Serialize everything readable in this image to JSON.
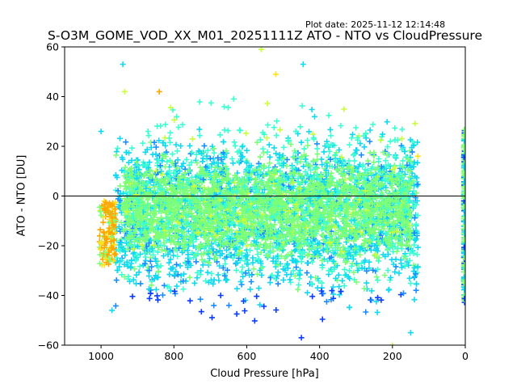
{
  "plot_date": "Plot date: 2025-11-12 12:14:48",
  "chart_data": {
    "type": "scatter",
    "title": "S-O3M_GOME_VOD_XX_M01_20251111Z ATO - NTO vs CloudPressure",
    "xlabel": "Cloud Pressure [hPa]",
    "ylabel": "ATO - NTO [DU]",
    "xlim": [
      1100,
      0
    ],
    "ylim": [
      -60,
      60
    ],
    "xticks": [
      1000,
      800,
      600,
      400,
      200,
      0
    ],
    "yticks": [
      -60,
      -40,
      -20,
      0,
      20,
      40,
      60
    ],
    "xtick_labels": [
      "1000",
      "800",
      "600",
      "400",
      "200",
      "0"
    ],
    "ytick_labels": [
      "−60",
      "−40",
      "−20",
      "0",
      "20",
      "40",
      "60"
    ],
    "reference_line_y": 0,
    "marker": "+",
    "grid": false,
    "colors": [
      "#0a3cff",
      "#1a8cff",
      "#12d8f0",
      "#3dffd2",
      "#7dff78",
      "#c8ff3c",
      "#ffe21a",
      "#ffa500"
    ],
    "distribution": {
      "main_cloud_x_range": [
        960,
        130
      ],
      "main_cloud_y_center": -5,
      "main_cloud_y_spread_upper": 25,
      "main_cloud_y_spread_lower": -35,
      "right_edge_column_x": 2,
      "right_edge_y_range": [
        -43,
        27
      ],
      "sparse_outliers": [
        {
          "x": 560,
          "y": 59
        },
        {
          "x": 940,
          "y": 53
        },
        {
          "x": 445,
          "y": 53
        },
        {
          "x": 520,
          "y": 49
        },
        {
          "x": 935,
          "y": 42
        },
        {
          "x": 840,
          "y": 42
        },
        {
          "x": 1000,
          "y": 26
        },
        {
          "x": 130,
          "y": 16
        },
        {
          "x": 150,
          "y": -55
        },
        {
          "x": 200,
          "y": -60
        },
        {
          "x": 970,
          "y": -46
        },
        {
          "x": 450,
          "y": -57
        }
      ]
    }
  }
}
